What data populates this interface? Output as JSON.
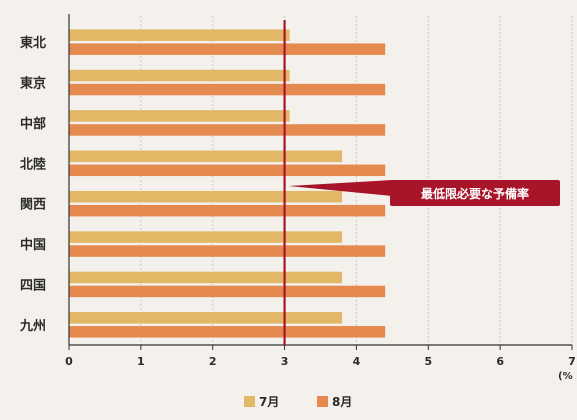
{
  "chart_data": {
    "type": "bar",
    "orientation": "horizontal",
    "categories": [
      "東北",
      "東京",
      "中部",
      "北陸",
      "関西",
      "中国",
      "四国",
      "九州"
    ],
    "series": [
      {
        "name": "7月",
        "color": "#e2b765",
        "values": [
          3.07,
          3.07,
          3.07,
          3.8,
          3.8,
          3.8,
          3.8,
          3.8
        ]
      },
      {
        "name": "8月",
        "color": "#e58a4f",
        "values": [
          4.4,
          4.4,
          4.4,
          4.4,
          4.4,
          4.4,
          4.4,
          4.4
        ]
      }
    ],
    "xlim": [
      0,
      7
    ],
    "xticks": [
      "0",
      "1",
      "2",
      "3",
      "4",
      "5",
      "6",
      "7"
    ],
    "x_unit": "(%",
    "grid": true,
    "legend_position": "bottom",
    "reference_line": {
      "value": 3,
      "color": "#a8142a",
      "label": "最低限必要な予備率"
    }
  }
}
